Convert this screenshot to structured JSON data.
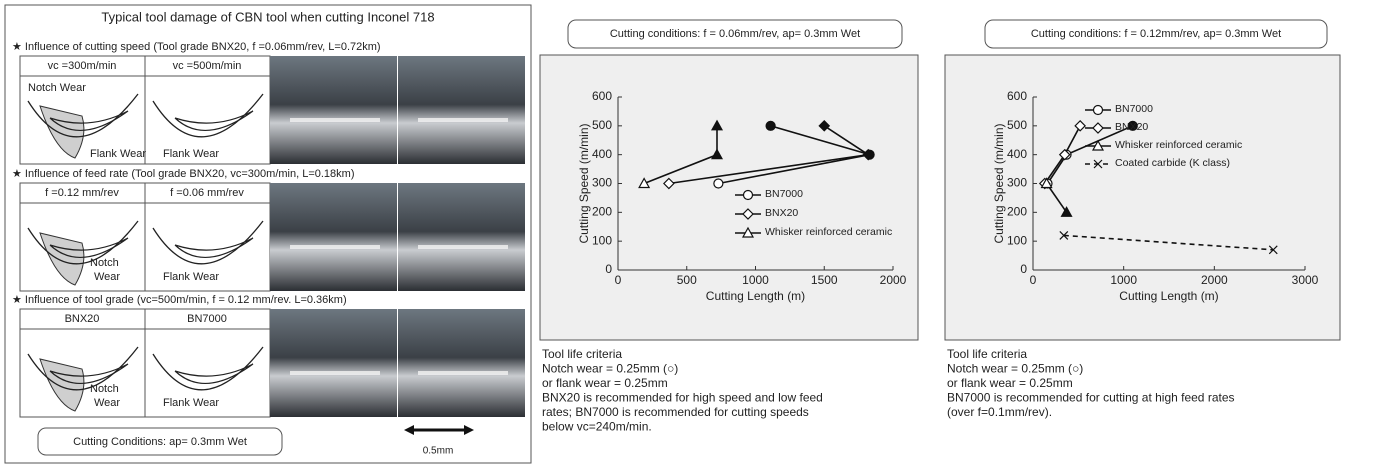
{
  "left_panel": {
    "title": "Typical tool damage of CBN tool when cutting Inconel 718",
    "sections": [
      {
        "heading": "★ Influence of cutting speed (Tool grade BNX20, f =0.06mm/rev, L=0.72km)",
        "columns": [
          "vc =300m/min",
          "vc =500m/min"
        ],
        "labels": [
          [
            "Notch Wear",
            "Flank Wear"
          ],
          [
            "Flank Wear"
          ]
        ]
      },
      {
        "heading": "★ Influence of feed rate (Tool grade BNX20, vc=300m/min, L=0.18km)",
        "columns": [
          "f =0.12 mm/rev",
          "f =0.06 mm/rev"
        ],
        "labels": [
          [
            "Notch",
            "Wear"
          ],
          [
            "Flank Wear"
          ]
        ]
      },
      {
        "heading": "★ Influence of tool grade (vc=500m/min, f = 0.12 mm/rev. L=0.36km)",
        "columns": [
          "BNX20",
          "BN7000"
        ],
        "labels": [
          [
            "Notch",
            "Wear"
          ],
          [
            "Flank Wear"
          ]
        ]
      }
    ],
    "conditions": "Cutting Conditions: ap= 0.3mm  Wet",
    "scale": "0.5mm"
  },
  "chart_data": [
    {
      "type": "line",
      "conditions": "Cutting conditions: f = 0.06mm/rev, ap= 0.3mm  Wet",
      "xlabel": "Cutting Length (m)",
      "ylabel": "Cutting Speed (m/min)",
      "xlim": [
        0,
        2000
      ],
      "xticks": [
        0,
        500,
        1000,
        1500,
        2000
      ],
      "ylim": [
        0,
        600
      ],
      "yticks": [
        0,
        100,
        200,
        300,
        400,
        500,
        600
      ],
      "series": [
        {
          "name": "BN7000",
          "color": "#111111",
          "marker": "o",
          "x": [
            730,
            1830,
            1110
          ],
          "values": [
            300,
            400,
            500
          ],
          "marker_fill": [
            "#ffffff",
            "#111111",
            "#111111"
          ]
        },
        {
          "name": "BNX20",
          "color": "#111111",
          "marker": "D",
          "x": [
            370,
            1820,
            1500
          ],
          "values": [
            300,
            400,
            500
          ],
          "marker_fill": [
            "#ffffff",
            "#111111",
            "#111111"
          ]
        },
        {
          "name": "Whisker reinforced ceramic",
          "color": "#111111",
          "marker": "^",
          "x": [
            190,
            720,
            720
          ],
          "values": [
            300,
            400,
            500
          ],
          "marker_fill": [
            "#ffffff",
            "#111111",
            "#111111"
          ]
        }
      ],
      "notes": [
        "Tool life criteria",
        "Notch wear = 0.25mm (○)",
        "or flank wear = 0.25mm",
        "BNX20 is recommended for high speed and low feed",
        "rates; BN7000 is recommended for cutting speeds",
        "below vc=240m/min."
      ]
    },
    {
      "type": "line",
      "conditions": "Cutting conditions: f = 0.12mm/rev, ap= 0.3mm  Wet",
      "xlabel": "Cutting Length (m)",
      "ylabel": "Cutting Speed (m/min)",
      "xlim": [
        0,
        3000
      ],
      "xticks": [
        0,
        1000,
        2000,
        3000
      ],
      "ylim": [
        0,
        600
      ],
      "yticks": [
        0,
        100,
        200,
        300,
        400,
        500,
        600
      ],
      "series": [
        {
          "name": "BN7000",
          "color": "#111111",
          "marker": "o",
          "x": [
            160,
            370,
            1100
          ],
          "values": [
            300,
            400,
            500
          ],
          "marker_fill": [
            "#ffffff",
            "#ffffff",
            "#111111"
          ]
        },
        {
          "name": "BNX20",
          "color": "#111111",
          "marker": "D",
          "x": [
            130,
            350,
            520
          ],
          "values": [
            300,
            400,
            500
          ],
          "marker_fill": [
            "#ffffff",
            "#ffffff",
            "#ffffff"
          ]
        },
        {
          "name": "Whisker reinforced ceramic",
          "color": "#111111",
          "marker": "^",
          "x": [
            150,
            370
          ],
          "values": [
            300,
            200
          ],
          "marker_fill": [
            "#ffffff",
            "#111111"
          ]
        },
        {
          "name": "Coated carbide (K class)",
          "color": "#111111",
          "marker": "x",
          "linestyle": "dashed",
          "x": [
            340,
            2650
          ],
          "values": [
            120,
            70
          ],
          "marker_fill": [
            "#111111",
            "#111111"
          ]
        }
      ],
      "notes": [
        "Tool life criteria",
        "Notch wear = 0.25mm (○)",
        "or flank wear = 0.25mm",
        "BN7000 is recommended for cutting at high feed rates",
        "(over f=0.1mm/rev)."
      ]
    }
  ]
}
